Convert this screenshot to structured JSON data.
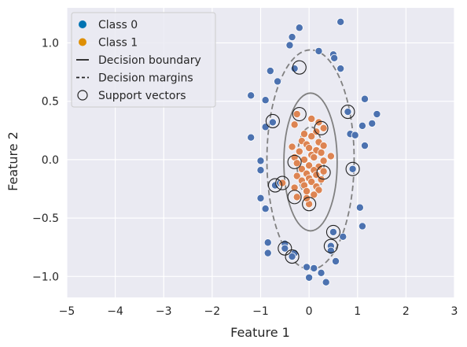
{
  "chart_data": {
    "type": "scatter",
    "xlabel": "Feature 1",
    "ylabel": "Feature 2",
    "xlim": [
      -5,
      3
    ],
    "ylim": [
      -1.18,
      1.3
    ],
    "xticks": [
      -5,
      -4,
      -3,
      -2,
      -1,
      0,
      1,
      2,
      3
    ],
    "xtick_labels": [
      "−5",
      "−4",
      "−3",
      "−2",
      "−1",
      "0",
      "1",
      "2",
      "3"
    ],
    "yticks": [
      -1.0,
      -0.5,
      0.0,
      0.5,
      1.0
    ],
    "ytick_labels": [
      "−1.0",
      "−0.5",
      "0.0",
      "0.5",
      "1.0"
    ],
    "grid": true,
    "background": "#eaeaf2",
    "legend_position": "top-left",
    "legend": [
      {
        "label": "Class 0",
        "kind": "point",
        "color": "#0173b2"
      },
      {
        "label": "Class 1",
        "kind": "point",
        "color": "#de8f05"
      },
      {
        "label": "Decision boundary",
        "kind": "solid-line",
        "color": "#222222"
      },
      {
        "label": "Decision margins",
        "kind": "dashed-line",
        "color": "#222222"
      },
      {
        "label": "Support vectors",
        "kind": "hollow-circle",
        "color": "#222222"
      }
    ],
    "series": [
      {
        "name": "Class 0",
        "color": "#4c72b0",
        "points": [
          [
            0.65,
            1.18
          ],
          [
            -0.2,
            1.13
          ],
          [
            -0.35,
            1.05
          ],
          [
            -0.4,
            0.98
          ],
          [
            0.2,
            0.93
          ],
          [
            0.5,
            0.9
          ],
          [
            0.52,
            0.87
          ],
          [
            -0.3,
            0.78
          ],
          [
            0.65,
            0.78
          ],
          [
            -0.8,
            0.76
          ],
          [
            -0.65,
            0.67
          ],
          [
            -1.2,
            0.55
          ],
          [
            -0.9,
            0.51
          ],
          [
            1.15,
            0.52
          ],
          [
            1.4,
            0.39
          ],
          [
            0.8,
            0.41
          ],
          [
            1.3,
            0.31
          ],
          [
            -0.75,
            0.32
          ],
          [
            -0.9,
            0.28
          ],
          [
            1.1,
            0.29
          ],
          [
            -1.2,
            0.19
          ],
          [
            0.85,
            0.22
          ],
          [
            0.95,
            0.21
          ],
          [
            1.15,
            0.12
          ],
          [
            -1.0,
            -0.01
          ],
          [
            -1.0,
            -0.09
          ],
          [
            0.9,
            -0.08
          ],
          [
            -0.7,
            -0.22
          ],
          [
            -0.6,
            -0.2
          ],
          [
            -1.0,
            -0.33
          ],
          [
            -0.9,
            -0.42
          ],
          [
            1.05,
            -0.41
          ],
          [
            1.1,
            -0.57
          ],
          [
            0.5,
            -0.62
          ],
          [
            0.7,
            -0.66
          ],
          [
            -0.85,
            -0.71
          ],
          [
            -0.5,
            -0.72
          ],
          [
            -0.5,
            -0.76
          ],
          [
            0.45,
            -0.74
          ],
          [
            0.45,
            -0.78
          ],
          [
            -0.85,
            -0.8
          ],
          [
            -0.3,
            -0.8
          ],
          [
            -0.35,
            -0.83
          ],
          [
            0.55,
            -0.87
          ],
          [
            -0.05,
            -0.92
          ],
          [
            0.1,
            -0.93
          ],
          [
            0.25,
            -0.97
          ],
          [
            0.0,
            -1.01
          ],
          [
            0.35,
            -1.05
          ]
        ]
      },
      {
        "name": "Class 1",
        "color": "#dd8452",
        "points": [
          [
            -0.25,
            0.39
          ],
          [
            0.05,
            0.35
          ],
          [
            0.2,
            0.32
          ],
          [
            -0.3,
            0.3
          ],
          [
            0.3,
            0.27
          ],
          [
            0.15,
            0.24
          ],
          [
            -0.1,
            0.22
          ],
          [
            0.05,
            0.2
          ],
          [
            -0.15,
            0.16
          ],
          [
            0.2,
            0.15
          ],
          [
            -0.05,
            0.13
          ],
          [
            0.3,
            0.12
          ],
          [
            -0.35,
            0.11
          ],
          [
            0.0,
            0.1
          ],
          [
            0.15,
            0.08
          ],
          [
            -0.2,
            0.07
          ],
          [
            0.25,
            0.06
          ],
          [
            0.05,
            0.04
          ],
          [
            -0.3,
            0.02
          ],
          [
            0.45,
            0.03
          ],
          [
            0.1,
            0.02
          ],
          [
            -0.1,
            0.0
          ],
          [
            0.3,
            -0.01
          ],
          [
            -0.25,
            -0.03
          ],
          [
            0.0,
            -0.05
          ],
          [
            0.2,
            -0.06
          ],
          [
            -0.15,
            -0.08
          ],
          [
            0.1,
            -0.09
          ],
          [
            0.3,
            -0.1
          ],
          [
            -0.05,
            -0.12
          ],
          [
            0.15,
            -0.13
          ],
          [
            -0.25,
            -0.14
          ],
          [
            0.0,
            -0.16
          ],
          [
            -0.15,
            -0.18
          ],
          [
            0.25,
            -0.17
          ],
          [
            0.05,
            -0.19
          ],
          [
            -0.55,
            -0.2
          ],
          [
            -0.1,
            -0.22
          ],
          [
            0.15,
            -0.23
          ],
          [
            -0.3,
            -0.24
          ],
          [
            0.2,
            -0.26
          ],
          [
            -0.05,
            -0.27
          ],
          [
            0.1,
            -0.3
          ],
          [
            -0.25,
            -0.32
          ],
          [
            0.0,
            -0.38
          ],
          [
            -0.05,
            -0.33
          ]
        ]
      }
    ],
    "support_vectors": [
      [
        -0.2,
        0.79
      ],
      [
        -0.75,
        0.33
      ],
      [
        0.8,
        0.41
      ],
      [
        -0.2,
        0.39
      ],
      [
        0.25,
        0.27
      ],
      [
        -0.3,
        -0.02
      ],
      [
        0.3,
        -0.11
      ],
      [
        0.9,
        -0.08
      ],
      [
        -0.55,
        -0.2
      ],
      [
        -0.7,
        -0.22
      ],
      [
        -0.3,
        -0.32
      ],
      [
        0.0,
        -0.38
      ],
      [
        0.5,
        -0.62
      ],
      [
        0.45,
        -0.74
      ],
      [
        -0.5,
        -0.76
      ],
      [
        -0.35,
        -0.83
      ]
    ],
    "boundary": {
      "center": [
        0.03,
        -0.02
      ],
      "radius_x": 0.55,
      "radius_y": 0.59
    },
    "margins": [
      {
        "center": [
          0.03,
          0.0
        ],
        "radius_x": 0.9,
        "radius_y": 0.94
      },
      {
        "center": [
          0.03,
          -0.02
        ],
        "radius_x": 0.28,
        "radius_y": 0.3
      }
    ]
  }
}
